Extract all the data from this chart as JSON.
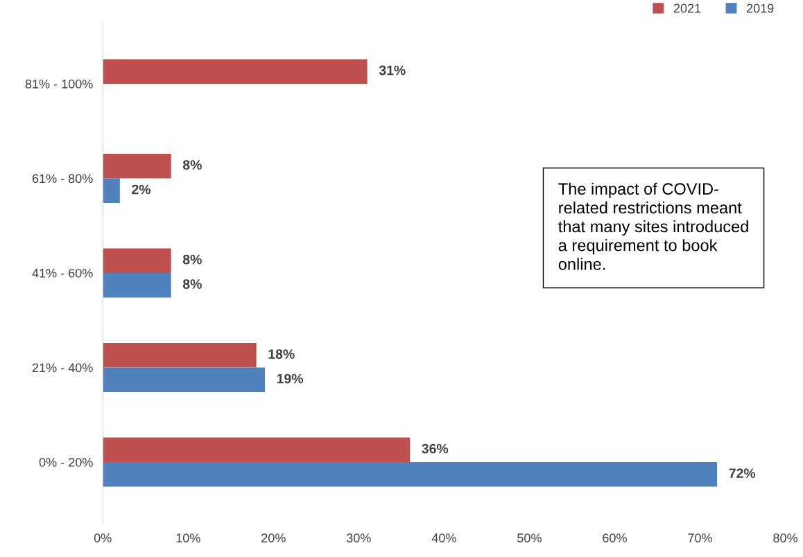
{
  "chart_data": {
    "type": "bar",
    "orientation": "horizontal",
    "categories": [
      "81% - 100%",
      "61% - 80%",
      "41% - 60%",
      "21% - 40%",
      "0% - 20%"
    ],
    "series": [
      {
        "name": "2021",
        "color": "#c0504d",
        "values": [
          31,
          8,
          8,
          18,
          36
        ],
        "value_labels": [
          "31%",
          "8%",
          "8%",
          "18%",
          "36%"
        ]
      },
      {
        "name": "2019",
        "color": "#4f81bd",
        "values": [
          null,
          2,
          8,
          19,
          72
        ],
        "value_labels": [
          null,
          "2%",
          "8%",
          "19%",
          "72%"
        ]
      }
    ],
    "xlim": [
      0,
      80
    ],
    "xticks": [
      {
        "value": 0,
        "label": "0%"
      },
      {
        "value": 10,
        "label": "10%"
      },
      {
        "value": 20,
        "label": "20%"
      },
      {
        "value": 30,
        "label": "30%"
      },
      {
        "value": 40,
        "label": "40%"
      },
      {
        "value": 50,
        "label": "50%"
      },
      {
        "value": 60,
        "label": "60%"
      },
      {
        "value": 70,
        "label": "70%"
      },
      {
        "value": 80,
        "label": "80%"
      }
    ],
    "grid": false,
    "legend": "top right",
    "annotations": [
      "The impact of COVID-\nrelated restrictions meant\nthat many sites introduced\na requirement to book\nonline."
    ]
  }
}
